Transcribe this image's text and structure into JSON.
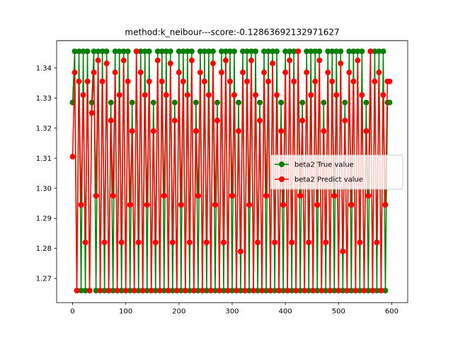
{
  "chart_data": {
    "type": "line",
    "title": "method:k_neibour---score:-0.12863692132971627",
    "xlabel": "",
    "ylabel": "",
    "xlim": [
      -30,
      630
    ],
    "ylim": [
      1.262,
      1.349
    ],
    "x_ticks": [
      0,
      100,
      200,
      300,
      400,
      500,
      600
    ],
    "y_ticks": [
      1.27,
      1.28,
      1.29,
      1.3,
      1.31,
      1.32,
      1.33,
      1.34
    ],
    "y_tick_labels": [
      "1.27",
      "1.28",
      "1.29",
      "1.30",
      "1.31",
      "1.32",
      "1.33",
      "1.34"
    ],
    "x_tick_labels": [
      "0",
      "100",
      "200",
      "300",
      "400",
      "500",
      "600"
    ],
    "legend_position": "center-right",
    "grid": false,
    "x": [
      0,
      4,
      8,
      12,
      16,
      20,
      24,
      28,
      32,
      36,
      40,
      44,
      48,
      52,
      56,
      60,
      64,
      68,
      72,
      76,
      80,
      84,
      88,
      92,
      96,
      100,
      104,
      108,
      112,
      116,
      120,
      124,
      128,
      132,
      136,
      140,
      144,
      148,
      152,
      156,
      160,
      164,
      168,
      172,
      176,
      180,
      184,
      188,
      192,
      196,
      200,
      204,
      208,
      212,
      216,
      220,
      224,
      228,
      232,
      236,
      240,
      244,
      248,
      252,
      256,
      260,
      264,
      268,
      272,
      276,
      280,
      284,
      288,
      292,
      296,
      300,
      304,
      308,
      312,
      316,
      320,
      324,
      328,
      332,
      336,
      340,
      344,
      348,
      352,
      356,
      360,
      364,
      368,
      372,
      376,
      380,
      384,
      388,
      392,
      396,
      400,
      404,
      408,
      412,
      416,
      420,
      424,
      428,
      432,
      436,
      440,
      444,
      448,
      452,
      456,
      460,
      464,
      468,
      472,
      476,
      480,
      484,
      488,
      492,
      496,
      500,
      504,
      508,
      512,
      516,
      520,
      524,
      528,
      532,
      536,
      540,
      544,
      548,
      552,
      556,
      560,
      564,
      568,
      572,
      576,
      580,
      584,
      588,
      592,
      596
    ],
    "series": [
      {
        "name": "beta2 True value",
        "color": "#008000",
        "values": [
          1.3285,
          1.3455,
          1.266,
          1.3455,
          1.266,
          1.3455,
          1.266,
          1.3455,
          1.266,
          1.3285,
          1.3455,
          1.266,
          1.3455,
          1.266,
          1.3455,
          1.266,
          1.3455,
          1.266,
          1.3285,
          1.266,
          1.3455,
          1.266,
          1.3455,
          1.266,
          1.3455,
          1.266,
          1.3455,
          1.266,
          1.3285,
          1.266,
          1.3455,
          1.266,
          1.3455,
          1.266,
          1.3455,
          1.266,
          1.3455,
          1.266,
          1.3285,
          1.266,
          1.3455,
          1.266,
          1.3455,
          1.266,
          1.3455,
          1.266,
          1.3455,
          1.266,
          1.3285,
          1.266,
          1.3455,
          1.266,
          1.3455,
          1.266,
          1.3455,
          1.266,
          1.3455,
          1.266,
          1.3285,
          1.266,
          1.3455,
          1.266,
          1.3455,
          1.266,
          1.3455,
          1.266,
          1.3455,
          1.266,
          1.3285,
          1.266,
          1.3455,
          1.266,
          1.3455,
          1.266,
          1.3455,
          1.266,
          1.3455,
          1.266,
          1.3285,
          1.266,
          1.3455,
          1.266,
          1.3455,
          1.266,
          1.3455,
          1.266,
          1.3455,
          1.266,
          1.3285,
          1.266,
          1.3455,
          1.266,
          1.3455,
          1.266,
          1.3455,
          1.266,
          1.3455,
          1.266,
          1.3285,
          1.266,
          1.3455,
          1.266,
          1.3455,
          1.266,
          1.3455,
          1.266,
          1.3455,
          1.266,
          1.3285,
          1.266,
          1.3455,
          1.266,
          1.3455,
          1.266,
          1.3455,
          1.266,
          1.3455,
          1.266,
          1.3285,
          1.266,
          1.3455,
          1.266,
          1.3455,
          1.266,
          1.3455,
          1.266,
          1.3455,
          1.266,
          1.3285,
          1.266,
          1.3455,
          1.266,
          1.3455,
          1.266,
          1.3455,
          1.266,
          1.3455,
          1.266,
          1.3285,
          1.266,
          1.3455,
          1.266,
          1.3455,
          1.266,
          1.3455,
          1.266,
          1.3455,
          1.266,
          1.3285,
          1.3285
        ]
      },
      {
        "name": "beta2 Predict value",
        "color": "#ff0000",
        "values": [
          1.3105,
          1.3385,
          1.266,
          1.3355,
          1.2945,
          1.331,
          1.282,
          1.3355,
          1.266,
          1.325,
          1.3385,
          1.2975,
          1.3425,
          1.266,
          1.3355,
          1.282,
          1.3415,
          1.266,
          1.3225,
          1.2975,
          1.3385,
          1.266,
          1.331,
          1.282,
          1.3425,
          1.266,
          1.3355,
          1.2945,
          1.319,
          1.266,
          1.3455,
          1.282,
          1.3385,
          1.266,
          1.331,
          1.2945,
          1.3355,
          1.266,
          1.319,
          1.282,
          1.3425,
          1.266,
          1.3355,
          1.2975,
          1.331,
          1.266,
          1.3415,
          1.282,
          1.3225,
          1.266,
          1.3385,
          1.2945,
          1.3355,
          1.266,
          1.331,
          1.282,
          1.3425,
          1.266,
          1.319,
          1.2975,
          1.3385,
          1.266,
          1.3355,
          1.282,
          1.331,
          1.266,
          1.3415,
          1.2945,
          1.3225,
          1.266,
          1.3385,
          1.282,
          1.3425,
          1.266,
          1.3355,
          1.2975,
          1.331,
          1.266,
          1.319,
          1.279,
          1.3385,
          1.266,
          1.3355,
          1.2945,
          1.3425,
          1.266,
          1.331,
          1.282,
          1.3225,
          1.266,
          1.3385,
          1.2975,
          1.3355,
          1.266,
          1.3415,
          1.282,
          1.331,
          1.266,
          1.319,
          1.2945,
          1.3385,
          1.266,
          1.3425,
          1.282,
          1.3355,
          1.266,
          1.3455,
          1.2975,
          1.3225,
          1.266,
          1.3385,
          1.282,
          1.331,
          1.266,
          1.3355,
          1.2945,
          1.3425,
          1.266,
          1.319,
          1.282,
          1.3385,
          1.266,
          1.3355,
          1.2975,
          1.331,
          1.266,
          1.3415,
          1.279,
          1.3225,
          1.266,
          1.3385,
          1.2945,
          1.3355,
          1.266,
          1.3425,
          1.282,
          1.331,
          1.266,
          1.319,
          1.2975,
          1.3455,
          1.266,
          1.3355,
          1.282,
          1.3385,
          1.266,
          1.331,
          1.2945,
          1.3355,
          1.3355
        ]
      }
    ]
  }
}
